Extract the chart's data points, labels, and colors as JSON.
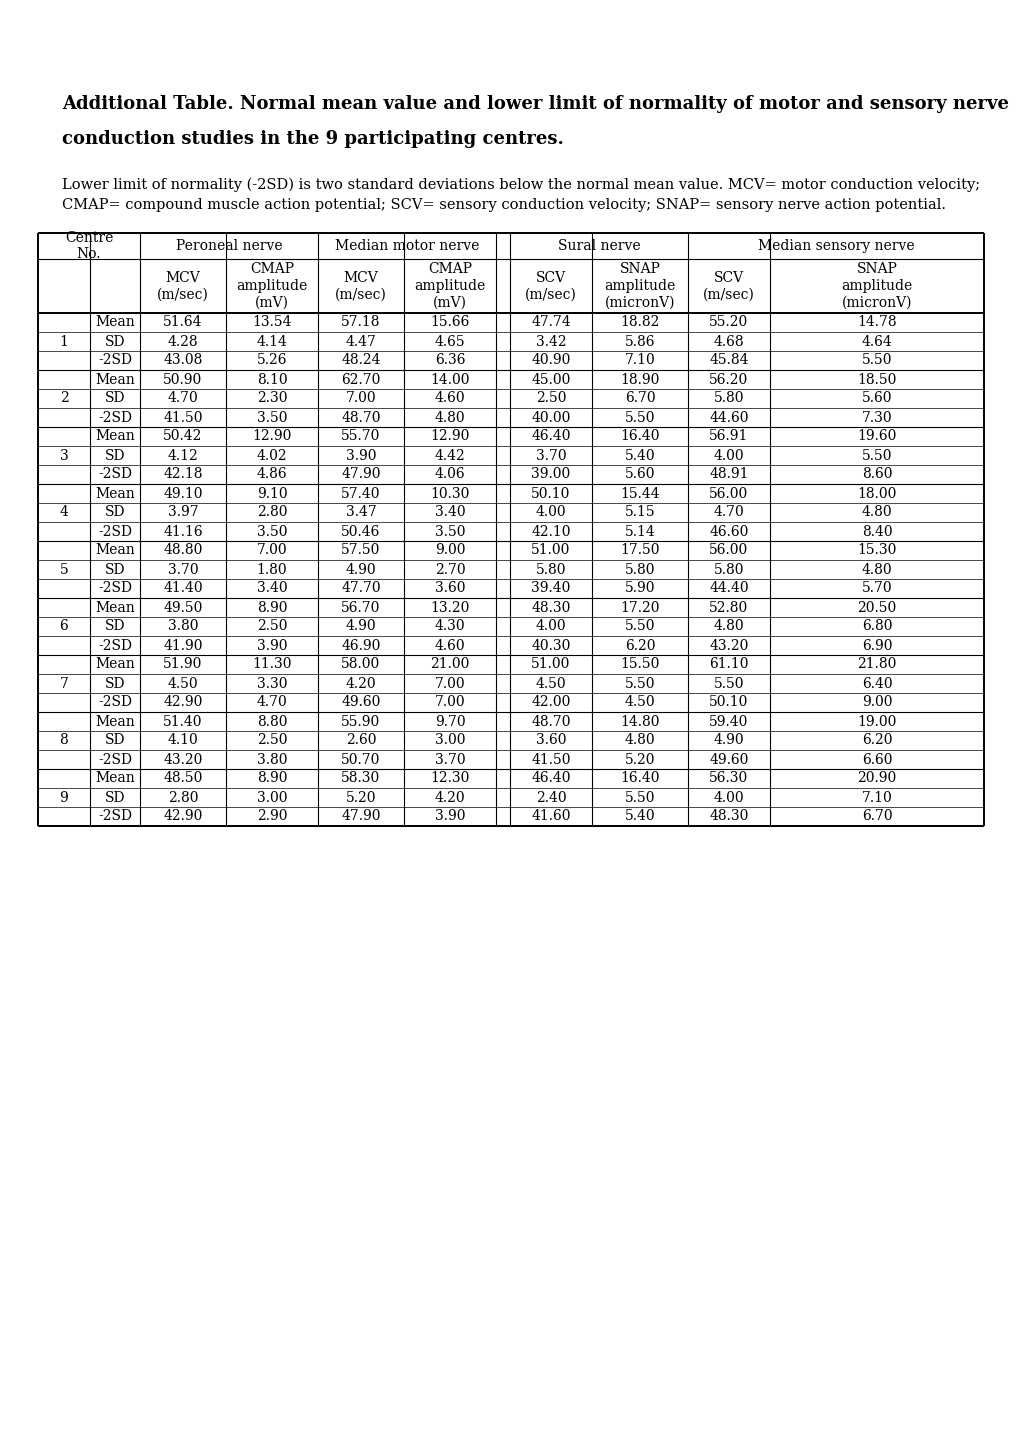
{
  "title_line1": "Additional Table. Normal mean value and lower limit of normality of motor and sensory nerve",
  "title_line2": "conduction studies in the 9 participating centres.",
  "footnote_line1": "Lower limit of normality (-2SD) is two standard deviations below the normal mean value. MCV= motor conduction velocity;",
  "footnote_line2": "CMAP= compound muscle action potential; SCV= sensory conduction velocity; SNAP= sensory nerve action potential.",
  "centres": [
    {
      "no": "1",
      "rows": [
        [
          "Mean",
          "51.64",
          "13.54",
          "57.18",
          "15.66",
          "47.74",
          "18.82",
          "55.20",
          "14.78"
        ],
        [
          "SD",
          "4.28",
          "4.14",
          "4.47",
          "4.65",
          "3.42",
          "5.86",
          "4.68",
          "4.64"
        ],
        [
          "-2SD",
          "43.08",
          "5.26",
          "48.24",
          "6.36",
          "40.90",
          "7.10",
          "45.84",
          "5.50"
        ]
      ]
    },
    {
      "no": "2",
      "rows": [
        [
          "Mean",
          "50.90",
          "8.10",
          "62.70",
          "14.00",
          "45.00",
          "18.90",
          "56.20",
          "18.50"
        ],
        [
          "SD",
          "4.70",
          "2.30",
          "7.00",
          "4.60",
          "2.50",
          "6.70",
          "5.80",
          "5.60"
        ],
        [
          "-2SD",
          "41.50",
          "3.50",
          "48.70",
          "4.80",
          "40.00",
          "5.50",
          "44.60",
          "7.30"
        ]
      ]
    },
    {
      "no": "3",
      "rows": [
        [
          "Mean",
          "50.42",
          "12.90",
          "55.70",
          "12.90",
          "46.40",
          "16.40",
          "56.91",
          "19.60"
        ],
        [
          "SD",
          "4.12",
          "4.02",
          "3.90",
          "4.42",
          "3.70",
          "5.40",
          "4.00",
          "5.50"
        ],
        [
          "-2SD",
          "42.18",
          "4.86",
          "47.90",
          "4.06",
          "39.00",
          "5.60",
          "48.91",
          "8.60"
        ]
      ]
    },
    {
      "no": "4",
      "rows": [
        [
          "Mean",
          "49.10",
          "9.10",
          "57.40",
          "10.30",
          "50.10",
          "15.44",
          "56.00",
          "18.00"
        ],
        [
          "SD",
          "3.97",
          "2.80",
          "3.47",
          "3.40",
          "4.00",
          "5.15",
          "4.70",
          "4.80"
        ],
        [
          "-2SD",
          "41.16",
          "3.50",
          "50.46",
          "3.50",
          "42.10",
          "5.14",
          "46.60",
          "8.40"
        ]
      ]
    },
    {
      "no": "5",
      "rows": [
        [
          "Mean",
          "48.80",
          "7.00",
          "57.50",
          "9.00",
          "51.00",
          "17.50",
          "56.00",
          "15.30"
        ],
        [
          "SD",
          "3.70",
          "1.80",
          "4.90",
          "2.70",
          "5.80",
          "5.80",
          "5.80",
          "4.80"
        ],
        [
          "-2SD",
          "41.40",
          "3.40",
          "47.70",
          "3.60",
          "39.40",
          "5.90",
          "44.40",
          "5.70"
        ]
      ]
    },
    {
      "no": "6",
      "rows": [
        [
          "Mean",
          "49.50",
          "8.90",
          "56.70",
          "13.20",
          "48.30",
          "17.20",
          "52.80",
          "20.50"
        ],
        [
          "SD",
          "3.80",
          "2.50",
          "4.90",
          "4.30",
          "4.00",
          "5.50",
          "4.80",
          "6.80"
        ],
        [
          "-2SD",
          "41.90",
          "3.90",
          "46.90",
          "4.60",
          "40.30",
          "6.20",
          "43.20",
          "6.90"
        ]
      ]
    },
    {
      "no": "7",
      "rows": [
        [
          "Mean",
          "51.90",
          "11.30",
          "58.00",
          "21.00",
          "51.00",
          "15.50",
          "61.10",
          "21.80"
        ],
        [
          "SD",
          "4.50",
          "3.30",
          "4.20",
          "7.00",
          "4.50",
          "5.50",
          "5.50",
          "6.40"
        ],
        [
          "-2SD",
          "42.90",
          "4.70",
          "49.60",
          "7.00",
          "42.00",
          "4.50",
          "50.10",
          "9.00"
        ]
      ]
    },
    {
      "no": "8",
      "rows": [
        [
          "Mean",
          "51.40",
          "8.80",
          "55.90",
          "9.70",
          "48.70",
          "14.80",
          "59.40",
          "19.00"
        ],
        [
          "SD",
          "4.10",
          "2.50",
          "2.60",
          "3.00",
          "3.60",
          "4.80",
          "4.90",
          "6.20"
        ],
        [
          "-2SD",
          "43.20",
          "3.80",
          "50.70",
          "3.70",
          "41.50",
          "5.20",
          "49.60",
          "6.60"
        ]
      ]
    },
    {
      "no": "9",
      "rows": [
        [
          "Mean",
          "48.50",
          "8.90",
          "58.30",
          "12.30",
          "46.40",
          "16.40",
          "56.30",
          "20.90"
        ],
        [
          "SD",
          "2.80",
          "3.00",
          "5.20",
          "4.20",
          "2.40",
          "5.50",
          "4.00",
          "7.10"
        ],
        [
          "-2SD",
          "42.90",
          "2.90",
          "47.90",
          "3.90",
          "41.60",
          "5.40",
          "48.30",
          "6.70"
        ]
      ]
    }
  ]
}
